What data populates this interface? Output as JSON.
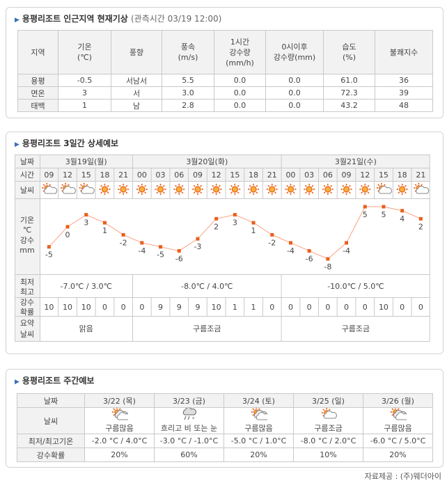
{
  "current": {
    "title": "용평리조트 인근지역 현재기상",
    "obs_time": "(관측시간 03/19 12:00)",
    "headers": [
      "지역",
      "기온\n(℃)",
      "풍향",
      "풍속\n(m/s)",
      "1시간\n강수량\n(mm/h)",
      "0시이후\n강수량(mm)",
      "습도\n(%)",
      "불쾌지수"
    ],
    "rows": [
      [
        "용평",
        "-0.5",
        "서남서",
        "5.5",
        "0.0",
        "0.0",
        "61.0",
        "36"
      ],
      [
        "면온",
        "3",
        "서",
        "3.0",
        "0.0",
        "0.0",
        "72.3",
        "39"
      ],
      [
        "태백",
        "1",
        "남",
        "2.8",
        "0.0",
        "0.0",
        "43.2",
        "48"
      ]
    ]
  },
  "forecast3": {
    "title": "용평리조트 3일간 상세예보",
    "labels": {
      "date": "날짜",
      "time": "시간",
      "weather": "날씨",
      "temp_a": "기온",
      "temp_b": "℃",
      "temp_c": "강수",
      "temp_d": "mm",
      "minmax_a": "최저",
      "minmax_b": "최고",
      "prob_a": "강수",
      "prob_b": "확률",
      "summary_a": "요약",
      "summary_b": "날씨"
    },
    "days": [
      {
        "label": "3월19일(월)",
        "minmax": "-7.0℃ / 3.0℃",
        "summary": "맑음"
      },
      {
        "label": "3월20일(화)",
        "minmax": "-8.0℃ / 4.0℃",
        "summary": "구름조금"
      },
      {
        "label": "3월21일(수)",
        "minmax": "-10.0℃ / 5.0℃",
        "summary": "구름조금"
      }
    ],
    "times": [
      "09",
      "12",
      "15",
      "18",
      "21",
      "00",
      "03",
      "06",
      "09",
      "12",
      "15",
      "18",
      "21",
      "00",
      "03",
      "06",
      "09",
      "12",
      "15",
      "18",
      "21"
    ],
    "icons": [
      "partly-cloudy-icon",
      "partly-cloudy-icon",
      "partly-cloudy-icon",
      "sun-icon",
      "sun-icon",
      "sun-icon",
      "sun-icon",
      "sun-icon",
      "sun-icon",
      "sun-icon",
      "sun-icon",
      "sun-icon",
      "sun-icon",
      "sun-icon",
      "sun-icon",
      "sun-icon",
      "sun-icon",
      "sun-icon",
      "partly-cloudy-icon",
      "sun-icon",
      "partly-cloudy-icon"
    ],
    "temps": [
      -5,
      0,
      3,
      1,
      -2,
      -4,
      -5,
      -6,
      -3,
      2,
      3,
      1,
      -2,
      -4,
      -6,
      -8,
      -4,
      5,
      5,
      4,
      2
    ],
    "temp_labels": [
      "-5",
      "0",
      "3",
      "1",
      "-2",
      "-4",
      "-5",
      "-6",
      "-3",
      "2",
      "3",
      "1",
      "-2",
      "-4",
      "-6",
      "-8",
      "-4",
      "5",
      "5",
      "4",
      "2"
    ],
    "precip_prob": [
      "10",
      "10",
      "10",
      "0",
      "0",
      "0",
      "9",
      "9",
      "9",
      "10",
      "1",
      "1",
      "0",
      "0",
      "0",
      "0",
      "0",
      "0",
      "10",
      "0",
      "0"
    ]
  },
  "chart_data": {
    "type": "line",
    "x": [
      "09",
      "12",
      "15",
      "18",
      "21",
      "00",
      "03",
      "06",
      "09",
      "12",
      "15",
      "18",
      "21",
      "00",
      "03",
      "06",
      "09",
      "12",
      "15",
      "18",
      "21"
    ],
    "series": [
      {
        "values": [
          -5,
          0,
          3,
          1,
          -2,
          -4,
          -5,
          -6,
          -3,
          2,
          3,
          1,
          -2,
          -4,
          -6,
          -8,
          -4,
          5,
          5,
          4,
          2
        ]
      }
    ],
    "grid": false,
    "colors": {
      "line": "#ff9f80",
      "marker": "#e8601c"
    }
  },
  "weekly": {
    "title": "용평리조트 주간예보",
    "labels": {
      "date": "날짜",
      "weather": "날씨",
      "minmax": "최저/최고기온",
      "prob": "강수확률"
    },
    "days": [
      {
        "date": "3/22 (목)",
        "icon": "cloudy-sun-icon",
        "desc": "구름많음",
        "minmax": "-2.0 °C / 4.0°C",
        "prob": "20%"
      },
      {
        "date": "3/23 (금)",
        "icon": "rain-snow-icon",
        "desc": "흐리고 비 또는 눈",
        "minmax": "-3.0 °C / -1.0°C",
        "prob": "60%"
      },
      {
        "date": "3/24 (토)",
        "icon": "cloudy-sun-icon",
        "desc": "구름많음",
        "minmax": "-5.0 °C / 1.0°C",
        "prob": "20%"
      },
      {
        "date": "3/25 (일)",
        "icon": "partly-cloudy-icon",
        "desc": "구름조금",
        "minmax": "-8.0 °C / 2.0°C",
        "prob": "10%"
      },
      {
        "date": "3/26 (월)",
        "icon": "cloudy-sun-icon",
        "desc": "구름많음",
        "minmax": "-6.0 °C / 5.0°C",
        "prob": "20%"
      }
    ]
  },
  "source": "자료제공 : (주)웨더아이",
  "colors": {
    "header_bg": "#f2f2f2",
    "border": "#c9c9c9",
    "title_arrow": "#3a6fb5",
    "sun": "#e8601c"
  }
}
